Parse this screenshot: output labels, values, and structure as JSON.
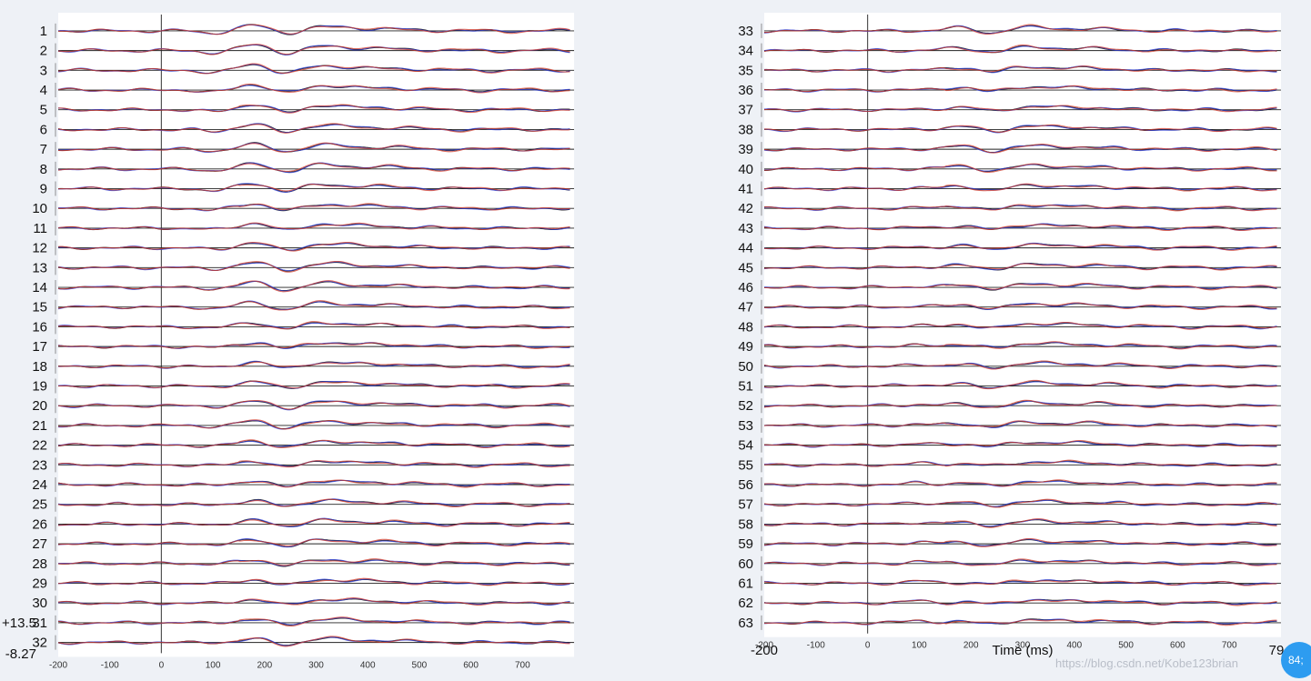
{
  "watermark": "https://blog.csdn.net/Kobe123brian",
  "badge": "84;",
  "colors": {
    "black": "#1a1a1a",
    "blue": "#2f3fd8",
    "red": "#d23a2a",
    "zero": "#555555",
    "rowline": "#222222"
  },
  "chart_data": [
    {
      "type": "line",
      "channels_label": [
        "1",
        "2",
        "3",
        "4",
        "5",
        "6",
        "7",
        "8",
        "9",
        "10",
        "11",
        "12",
        "13",
        "14",
        "15",
        "16",
        "17",
        "18",
        "19",
        "20",
        "21",
        "22",
        "23",
        "24",
        "25",
        "26",
        "27",
        "28",
        "29",
        "30",
        "31",
        "32"
      ],
      "scale_labels": {
        "top": "+13.5",
        "bottom": "-8.27"
      },
      "x_ticks": [
        "-200",
        "-100",
        "0",
        "100",
        "200",
        "300",
        "400",
        "500",
        "600",
        "700"
      ],
      "xlim": [
        -200,
        800
      ],
      "series": [
        {
          "color": "black"
        },
        {
          "color": "blue"
        },
        {
          "color": "red"
        }
      ]
    },
    {
      "type": "line",
      "channels_label": [
        "33",
        "34",
        "35",
        "36",
        "37",
        "38",
        "39",
        "40",
        "41",
        "42",
        "43",
        "44",
        "45",
        "46",
        "47",
        "48",
        "49",
        "50",
        "51",
        "52",
        "53",
        "54",
        "55",
        "56",
        "57",
        "58",
        "59",
        "60",
        "61",
        "62",
        "63"
      ],
      "x_ticks": [
        "-200",
        "-100",
        "0",
        "100",
        "200",
        "300",
        "400",
        "500",
        "600",
        "700"
      ],
      "x_start_label": "-200",
      "x_end_label": "79",
      "xlabel": "Time (ms)",
      "xlim": [
        -200,
        800
      ],
      "series": [
        {
          "color": "black"
        },
        {
          "color": "blue"
        },
        {
          "color": "red"
        }
      ]
    }
  ]
}
